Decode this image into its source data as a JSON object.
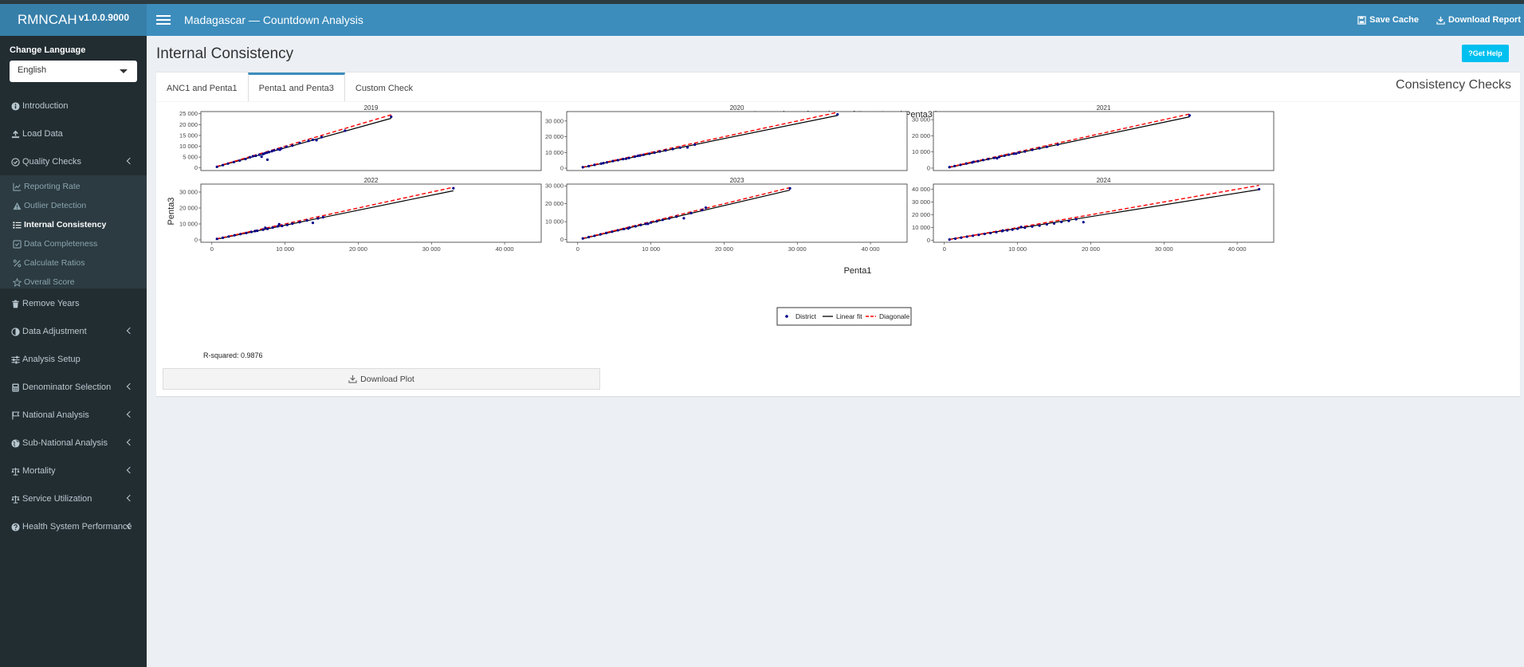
{
  "app": {
    "name": "RMNCAH",
    "version": "v1.0.0.9000"
  },
  "navbar": {
    "title": "Madagascar — Countdown Analysis",
    "save_cache": "Save Cache",
    "download_report": "Download Report"
  },
  "sidebar": {
    "language_label": "Change Language",
    "language_value": "English",
    "items": [
      {
        "label": "Introduction",
        "icon": "info-circle-icon"
      },
      {
        "label": "Load Data",
        "icon": "upload-icon"
      },
      {
        "label": "Quality Checks",
        "icon": "check-circle-icon",
        "expandable": true
      },
      {
        "label": "Remove Years",
        "icon": "trash-icon"
      },
      {
        "label": "Data Adjustment",
        "icon": "adjust-icon",
        "expandable": true
      },
      {
        "label": "Analysis Setup",
        "icon": "sliders-icon"
      },
      {
        "label": "Denominator Selection",
        "icon": "calculator-icon",
        "expandable": true
      },
      {
        "label": "National Analysis",
        "icon": "flag-icon",
        "expandable": true
      },
      {
        "label": "Sub-National Analysis",
        "icon": "globe-icon",
        "expandable": true
      },
      {
        "label": "Mortality",
        "icon": "scale-icon",
        "expandable": true
      },
      {
        "label": "Service Utilization",
        "icon": "balance-icon",
        "expandable": true
      },
      {
        "label": "Health System Performance",
        "icon": "question-circle-icon",
        "expandable": true
      }
    ],
    "submenu": [
      {
        "label": "Reporting Rate",
        "icon": "line-chart-icon"
      },
      {
        "label": "Outlier Detection",
        "icon": "warning-icon"
      },
      {
        "label": "Internal Consistency",
        "icon": "list-check-icon",
        "active": true
      },
      {
        "label": "Data Completeness",
        "icon": "check-square-icon"
      },
      {
        "label": "Calculate Ratios",
        "icon": "percent-icon"
      },
      {
        "label": "Overall Score",
        "icon": "star-icon"
      }
    ]
  },
  "page": {
    "title": "Internal Consistency",
    "help_button": "Get Help",
    "tabs": [
      {
        "label": "ANC1 and Penta1"
      },
      {
        "label": "Penta1 and Penta3",
        "active": true
      },
      {
        "label": "Custom Check"
      }
    ],
    "box_title": "Consistency Checks",
    "r_squared": "R-squared: 0.9876",
    "download_plot": "Download Plot"
  },
  "colors": {
    "navbar": "#3c8dbc",
    "logo": "#367fa9",
    "sidebar": "#222d32",
    "help": "#00c0ef",
    "points": "#00008b",
    "diagonal": "#ff0000",
    "fit": "#000000"
  },
  "chart_data": {
    "type": "scatter",
    "title": "Comparison of numbers of Penta1 and Penta3 by year",
    "xlabel": "Penta1",
    "ylabel": "Penta3",
    "xlim": [
      -1500,
      45000
    ],
    "xticks": [
      0,
      10000,
      20000,
      30000,
      40000
    ],
    "xtick_labels": [
      "0",
      "10 000",
      "20 000",
      "30 000",
      "40 000"
    ],
    "legend": {
      "position": "bottom",
      "entries": [
        "District",
        "Linear fit",
        "Diagonale"
      ]
    },
    "facets": [
      {
        "year": "2019",
        "ylim": [
          -1200,
          26000
        ],
        "yticks": [
          0,
          5000,
          10000,
          15000,
          20000,
          25000
        ],
        "ytick_labels": [
          "0",
          "5 000",
          "10 000",
          "15 000",
          "20 000",
          "25 000"
        ],
        "fit": {
          "slope": 0.94,
          "intercept": -150
        },
        "x_range": [
          600,
          24500
        ],
        "points": [
          [
            700,
            520
          ],
          [
            1500,
            1300
          ],
          [
            2200,
            2000
          ],
          [
            3000,
            2700
          ],
          [
            3800,
            3400
          ],
          [
            4600,
            4100
          ],
          [
            5200,
            4900
          ],
          [
            6000,
            5600
          ],
          [
            6500,
            6100
          ],
          [
            7000,
            6400
          ],
          [
            7200,
            6700
          ],
          [
            7500,
            7000
          ],
          [
            7600,
            3800
          ],
          [
            7800,
            7300
          ],
          [
            8200,
            7700
          ],
          [
            8500,
            8100
          ],
          [
            9000,
            8600
          ],
          [
            9500,
            9000
          ],
          [
            10200,
            9800
          ],
          [
            11000,
            10300
          ],
          [
            12000,
            11500
          ],
          [
            13200,
            12500
          ],
          [
            13800,
            13000
          ],
          [
            14300,
            12800
          ],
          [
            15000,
            14200
          ],
          [
            18200,
            17200
          ],
          [
            24500,
            23600
          ],
          [
            6800,
            5200
          ],
          [
            9300,
            8400
          ],
          [
            5600,
            5400
          ]
        ]
      },
      {
        "year": "2020",
        "ylim": [
          -1500,
          36000
        ],
        "yticks": [
          0,
          10000,
          20000,
          30000
        ],
        "ytick_labels": [
          "0",
          "10 000",
          "20 000",
          "30 000"
        ],
        "fit": {
          "slope": 0.95,
          "intercept": -200
        },
        "x_range": [
          600,
          35500
        ],
        "points": [
          [
            700,
            600
          ],
          [
            1500,
            1300
          ],
          [
            2300,
            2100
          ],
          [
            3200,
            2900
          ],
          [
            4000,
            3700
          ],
          [
            4800,
            4500
          ],
          [
            5500,
            5100
          ],
          [
            6200,
            5800
          ],
          [
            7000,
            6500
          ],
          [
            7800,
            7300
          ],
          [
            8500,
            8000
          ],
          [
            9000,
            8500
          ],
          [
            9800,
            9200
          ],
          [
            10500,
            9900
          ],
          [
            11200,
            10600
          ],
          [
            12000,
            11300
          ],
          [
            13000,
            12200
          ],
          [
            14000,
            13100
          ],
          [
            15000,
            13200
          ],
          [
            16000,
            15000
          ],
          [
            35500,
            34200
          ],
          [
            6600,
            6000
          ],
          [
            8200,
            7800
          ],
          [
            3500,
            3200
          ]
        ]
      },
      {
        "year": "2021",
        "ylim": [
          -1500,
          35000
        ],
        "yticks": [
          0,
          10000,
          20000,
          30000
        ],
        "ytick_labels": [
          "0",
          "10 000",
          "20 000",
          "30 000"
        ],
        "fit": {
          "slope": 0.955,
          "intercept": -250
        },
        "x_range": [
          600,
          33500
        ],
        "points": [
          [
            700,
            600
          ],
          [
            1400,
            1300
          ],
          [
            2200,
            2000
          ],
          [
            3000,
            2800
          ],
          [
            3800,
            3500
          ],
          [
            4600,
            4300
          ],
          [
            5300,
            5000
          ],
          [
            6000,
            5600
          ],
          [
            6800,
            6300
          ],
          [
            7500,
            6900
          ],
          [
            8200,
            7700
          ],
          [
            8800,
            8300
          ],
          [
            9500,
            8900
          ],
          [
            10200,
            9600
          ],
          [
            11000,
            10300
          ],
          [
            12000,
            11300
          ],
          [
            13000,
            12300
          ],
          [
            14000,
            13200
          ],
          [
            15500,
            14600
          ],
          [
            33500,
            32600
          ],
          [
            7200,
            6100
          ],
          [
            9800,
            9000
          ],
          [
            4000,
            3900
          ]
        ]
      },
      {
        "year": "2022",
        "ylim": [
          -1500,
          35000
        ],
        "yticks": [
          0,
          10000,
          20000,
          30000
        ],
        "ytick_labels": [
          "0",
          "10 000",
          "20 000",
          "30 000"
        ],
        "fit": {
          "slope": 0.94,
          "intercept": -200
        },
        "x_range": [
          600,
          33000
        ],
        "points": [
          [
            700,
            600
          ],
          [
            1500,
            1300
          ],
          [
            2300,
            2100
          ],
          [
            3100,
            2900
          ],
          [
            3900,
            3600
          ],
          [
            4700,
            4300
          ],
          [
            5400,
            5000
          ],
          [
            6200,
            5700
          ],
          [
            7000,
            6400
          ],
          [
            7600,
            6900
          ],
          [
            8300,
            7700
          ],
          [
            9000,
            8500
          ],
          [
            9600,
            8700
          ],
          [
            10300,
            9400
          ],
          [
            11000,
            10200
          ],
          [
            12000,
            11100
          ],
          [
            13000,
            12200
          ],
          [
            13800,
            10700
          ],
          [
            14500,
            13500
          ],
          [
            15200,
            14200
          ],
          [
            33000,
            32400
          ],
          [
            7300,
            7600
          ],
          [
            9200,
            9800
          ],
          [
            5900,
            5500
          ]
        ]
      },
      {
        "year": "2023",
        "ylim": [
          -1500,
          31000
        ],
        "yticks": [
          0,
          10000,
          20000,
          30000
        ],
        "ytick_labels": [
          "0",
          "10 000",
          "20 000",
          "30 000"
        ],
        "fit": {
          "slope": 0.96,
          "intercept": -200
        },
        "x_range": [
          600,
          29000
        ],
        "points": [
          [
            700,
            600
          ],
          [
            1500,
            1400
          ],
          [
            2300,
            2100
          ],
          [
            3100,
            2900
          ],
          [
            3900,
            3700
          ],
          [
            4700,
            4400
          ],
          [
            5500,
            5200
          ],
          [
            6300,
            5900
          ],
          [
            7100,
            6700
          ],
          [
            7900,
            7400
          ],
          [
            8600,
            8100
          ],
          [
            9300,
            8800
          ],
          [
            10000,
            9500
          ],
          [
            10800,
            10200
          ],
          [
            11600,
            11000
          ],
          [
            12500,
            11800
          ],
          [
            13500,
            12800
          ],
          [
            14500,
            11900
          ],
          [
            15500,
            14800
          ],
          [
            17000,
            16500
          ],
          [
            17500,
            17800
          ],
          [
            29000,
            28600
          ],
          [
            6900,
            6200
          ],
          [
            9600,
            8800
          ]
        ]
      },
      {
        "year": "2024",
        "ylim": [
          -1500,
          44000
        ],
        "yticks": [
          0,
          10000,
          20000,
          30000,
          40000
        ],
        "ytick_labels": [
          "0",
          "10 000",
          "20 000",
          "30 000",
          "40 000"
        ],
        "fit": {
          "slope": 0.92,
          "intercept": 150
        },
        "x_range": [
          600,
          43000
        ],
        "points": [
          [
            700,
            600
          ],
          [
            1500,
            1300
          ],
          [
            2300,
            2100
          ],
          [
            3100,
            2900
          ],
          [
            3900,
            3600
          ],
          [
            4700,
            4300
          ],
          [
            5500,
            5000
          ],
          [
            6300,
            5700
          ],
          [
            7100,
            6400
          ],
          [
            7900,
            7200
          ],
          [
            8600,
            7800
          ],
          [
            9300,
            8400
          ],
          [
            10000,
            9100
          ],
          [
            11000,
            9900
          ],
          [
            12000,
            10800
          ],
          [
            13000,
            11500
          ],
          [
            14000,
            12500
          ],
          [
            15000,
            13200
          ],
          [
            16000,
            14400
          ],
          [
            17000,
            15200
          ],
          [
            18000,
            16500
          ],
          [
            19000,
            14200
          ],
          [
            43000,
            40000
          ],
          [
            8000,
            7600
          ],
          [
            10500,
            10400
          ]
        ]
      }
    ]
  }
}
